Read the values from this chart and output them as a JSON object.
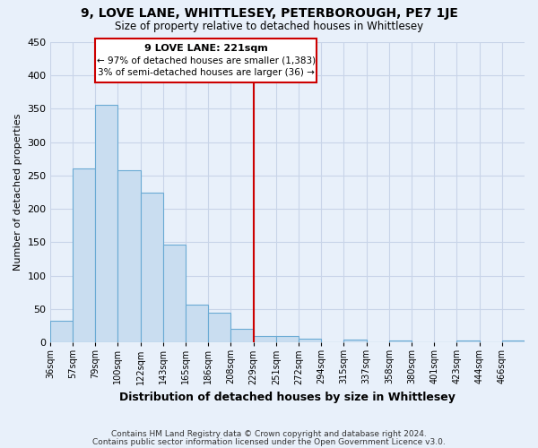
{
  "title": "9, LOVE LANE, WHITTLESEY, PETERBOROUGH, PE7 1JE",
  "subtitle": "Size of property relative to detached houses in Whittlesey",
  "xlabel": "Distribution of detached houses by size in Whittlesey",
  "ylabel": "Number of detached properties",
  "footer_line1": "Contains HM Land Registry data © Crown copyright and database right 2024.",
  "footer_line2": "Contains public sector information licensed under the Open Government Licence v3.0.",
  "bin_labels": [
    "36sqm",
    "57sqm",
    "79sqm",
    "100sqm",
    "122sqm",
    "143sqm",
    "165sqm",
    "186sqm",
    "208sqm",
    "229sqm",
    "251sqm",
    "272sqm",
    "294sqm",
    "315sqm",
    "337sqm",
    "358sqm",
    "380sqm",
    "401sqm",
    "423sqm",
    "444sqm",
    "466sqm"
  ],
  "bar_heights": [
    33,
    261,
    356,
    258,
    225,
    146,
    57,
    44,
    20,
    10,
    10,
    6,
    0,
    4,
    0,
    3,
    0,
    0,
    3,
    0,
    3
  ],
  "bar_color": "#c9ddf0",
  "bar_edge_color": "#6aaad4",
  "background_color": "#e8f0fa",
  "grid_color": "#c8d4e8",
  "marker_bin_index": 9,
  "marker_line_color": "#cc0000",
  "annotation_title": "9 LOVE LANE: 221sqm",
  "annotation_line1": "← 97% of detached houses are smaller (1,383)",
  "annotation_line2": "3% of semi-detached houses are larger (36) →",
  "annotation_box_color": "#ffffff",
  "annotation_box_edge": "#cc0000",
  "ylim": [
    0,
    450
  ],
  "yticks": [
    0,
    50,
    100,
    150,
    200,
    250,
    300,
    350,
    400,
    450
  ]
}
